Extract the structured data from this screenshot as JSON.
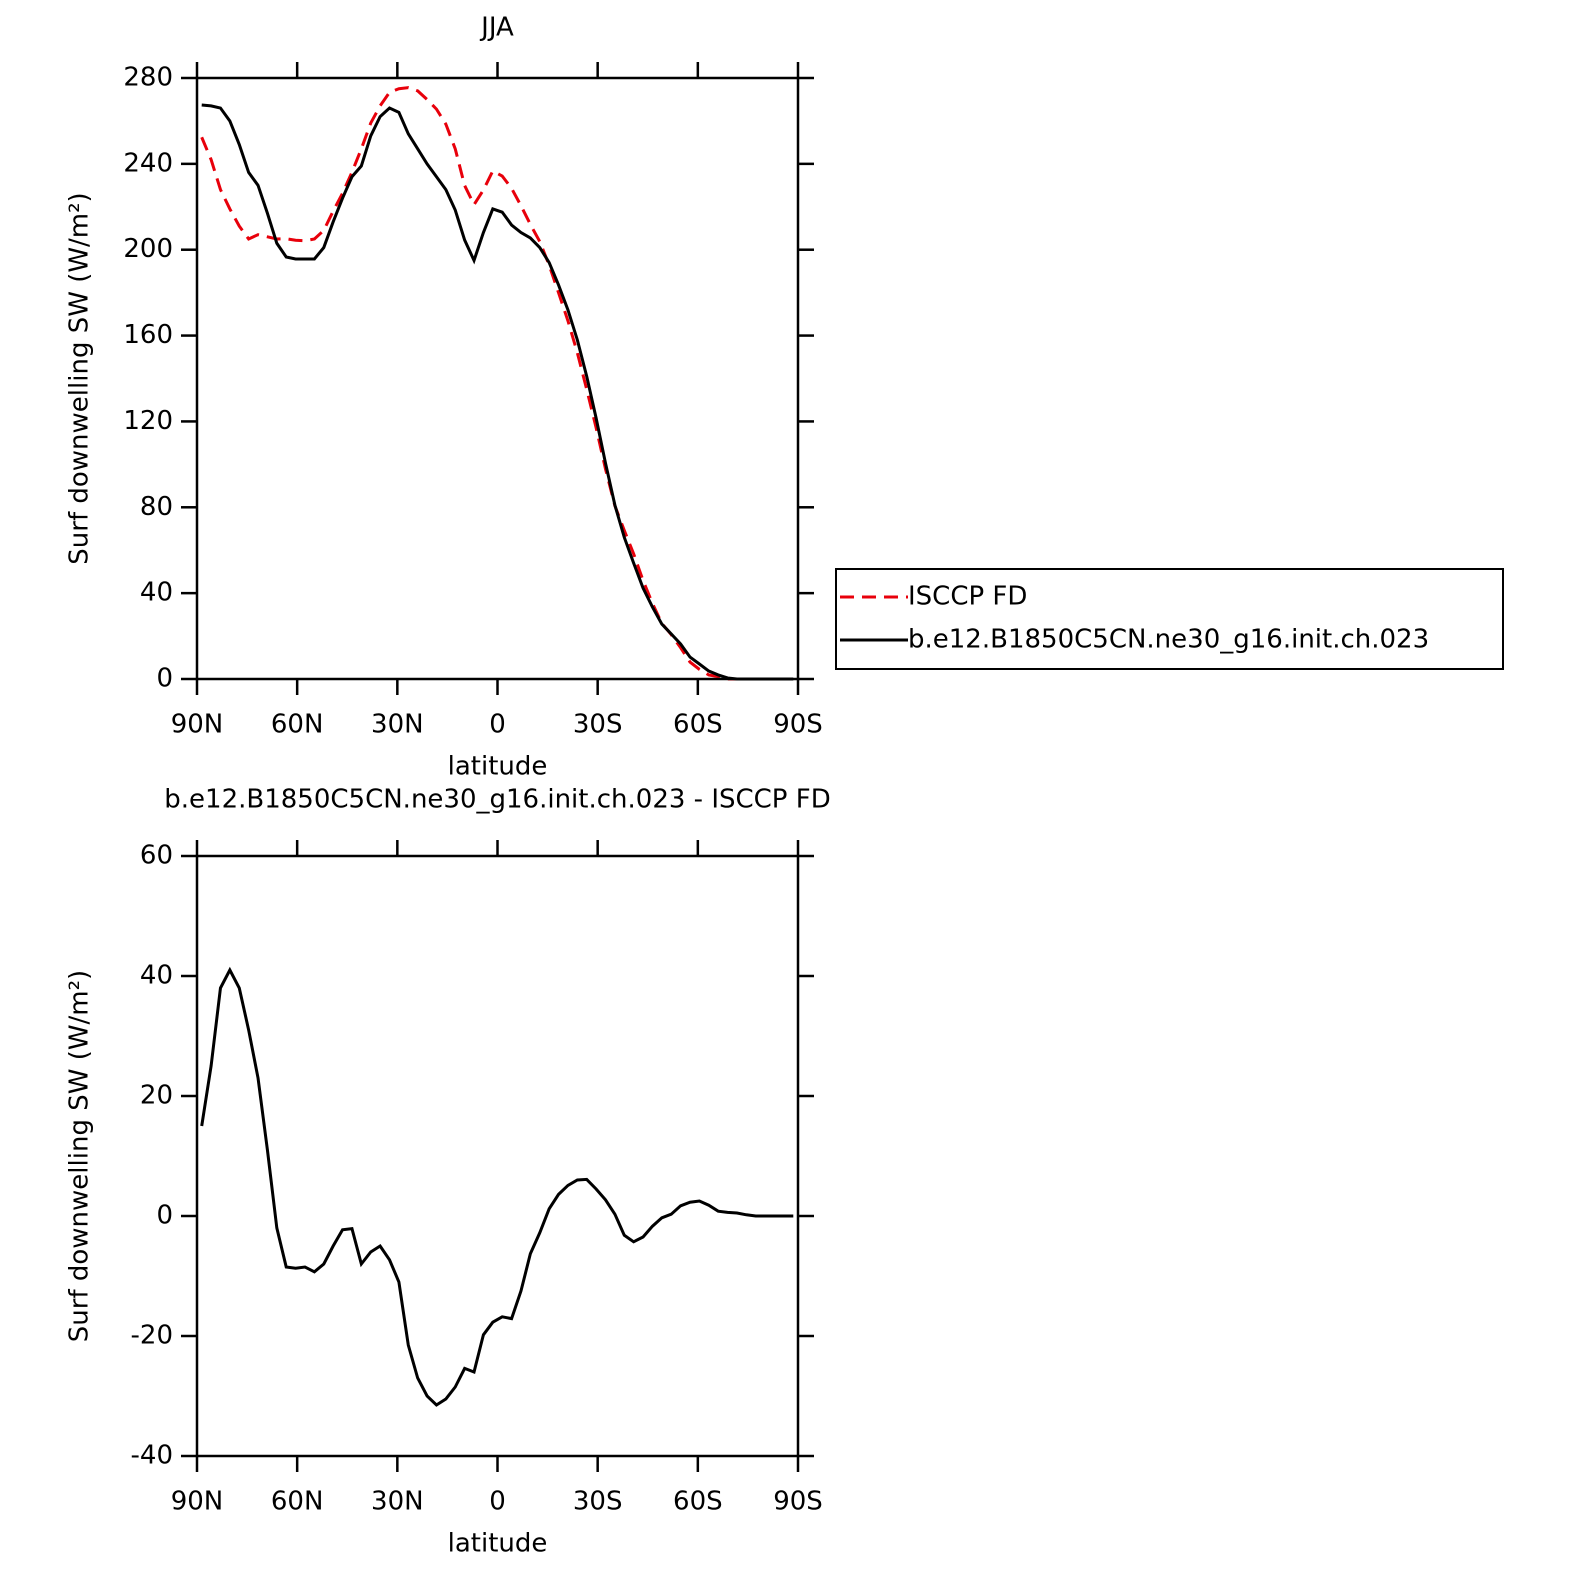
{
  "chart_data": [
    {
      "type": "line",
      "title": "JJA",
      "xlabel": "latitude",
      "ylabel": "Surf downwelling SW (W/m²)",
      "x": [
        88.59,
        85.78,
        82.97,
        80.16,
        77.34,
        74.53,
        71.72,
        68.91,
        66.09,
        63.28,
        60.47,
        57.66,
        54.84,
        52.03,
        49.22,
        46.41,
        43.59,
        40.78,
        37.97,
        35.16,
        32.34,
        29.53,
        26.72,
        23.91,
        21.09,
        18.28,
        15.47,
        12.66,
        9.84,
        7.03,
        4.22,
        1.41,
        -1.41,
        -4.22,
        -7.03,
        -9.84,
        -12.66,
        -15.47,
        -18.28,
        -21.09,
        -23.91,
        -26.72,
        -29.53,
        -32.34,
        -35.16,
        -37.97,
        -40.78,
        -43.59,
        -46.41,
        -49.22,
        -52.03,
        -54.84,
        -57.66,
        -60.47,
        -63.28,
        -66.09,
        -68.91,
        -71.72,
        -74.53,
        -77.34,
        -80.16,
        -82.97,
        -85.78,
        -88.59
      ],
      "series": [
        {
          "name": "ISCCP FD",
          "color": "#e8000b",
          "dash": "dashed",
          "values": [
            252.4,
            242,
            228,
            219,
            211,
            205,
            207,
            206,
            205,
            205.1,
            204.4,
            204.2,
            205,
            209,
            218,
            226.3,
            236.1,
            247,
            259,
            267,
            273.3,
            275,
            275.5,
            274,
            270,
            265.5,
            258.5,
            247,
            229.9,
            221,
            227.8,
            236.7,
            234.3,
            228.6,
            220.5,
            211.8,
            203.8,
            192.8,
            180,
            166.9,
            152,
            134.9,
            117.1,
            97.9,
            80.7,
            69.2,
            58.3,
            45.9,
            35.2,
            25.9,
            20.7,
            14.6,
            7.9,
            4.5,
            1.9,
            1.1,
            0,
            0,
            0,
            0,
            0,
            0,
            0,
            0
          ]
        },
        {
          "name": "b.e12.B1850C5CN.ne30_g16.init.ch.023",
          "color": "#000000",
          "dash": "solid",
          "values": [
            267.4,
            267,
            266,
            260,
            249,
            236,
            230,
            217,
            203,
            196.6,
            195.7,
            195.7,
            195.7,
            201,
            213,
            224,
            234,
            239,
            253,
            262,
            266,
            264,
            254,
            247,
            240,
            234,
            228,
            218.5,
            204.5,
            195,
            208,
            219,
            217.5,
            211.5,
            208,
            205.5,
            201,
            194,
            183.6,
            172,
            158,
            141,
            121.6,
            100.6,
            81,
            66,
            54,
            42.4,
            33.5,
            25.6,
            21,
            16.3,
            10.2,
            7,
            3.7,
            1.9,
            0.5,
            0,
            0,
            0,
            0,
            0,
            0,
            0
          ]
        }
      ],
      "xlim": [
        90,
        -90
      ],
      "xticks": [
        {
          "value": 90,
          "label": "90N"
        },
        {
          "value": 60,
          "label": "60N"
        },
        {
          "value": 30,
          "label": "30N"
        },
        0,
        {
          "value": -30,
          "label": "30S"
        },
        {
          "value": -60,
          "label": "60S"
        },
        {
          "value": -90,
          "label": "90S"
        }
      ],
      "ylim": [
        0,
        280
      ],
      "yticks": [
        0,
        40,
        80,
        120,
        160,
        200,
        240,
        280
      ],
      "legend": "right"
    },
    {
      "type": "line",
      "title": "b.e12.B1850C5CN.ne30_g16.init.ch.023 - ISCCP FD",
      "xlabel": "latitude",
      "ylabel": "Surf downwelling SW (W/m²)",
      "x": [
        88.59,
        85.78,
        82.97,
        80.16,
        77.34,
        74.53,
        71.72,
        68.91,
        66.09,
        63.28,
        60.47,
        57.66,
        54.84,
        52.03,
        49.22,
        46.41,
        43.59,
        40.78,
        37.97,
        35.16,
        32.34,
        29.53,
        26.72,
        23.91,
        21.09,
        18.28,
        15.47,
        12.66,
        9.84,
        7.03,
        4.22,
        1.41,
        -1.41,
        -4.22,
        -7.03,
        -9.84,
        -12.66,
        -15.47,
        -18.28,
        -21.09,
        -23.91,
        -26.72,
        -29.53,
        -32.34,
        -35.16,
        -37.97,
        -40.78,
        -43.59,
        -46.41,
        -49.22,
        -52.03,
        -54.84,
        -57.66,
        -60.47,
        -63.28,
        -66.09,
        -68.91,
        -71.72,
        -74.53,
        -77.34,
        -80.16,
        -82.97,
        -85.78,
        -88.59
      ],
      "series": [
        {
          "color": "#000000",
          "dash": "solid",
          "values": [
            15,
            25,
            38,
            41,
            38,
            31,
            23,
            11,
            -2,
            -8.5,
            -8.7,
            -8.5,
            -9.3,
            -8,
            -5,
            -2.3,
            -2.1,
            -8,
            -6,
            -5,
            -7.3,
            -11,
            -21.5,
            -27,
            -30,
            -31.5,
            -30.5,
            -28.5,
            -25.4,
            -26,
            -19.8,
            -17.7,
            -16.8,
            -17.1,
            -12.5,
            -6.3,
            -2.8,
            1.2,
            3.6,
            5.1,
            6.0,
            6.1,
            4.5,
            2.7,
            0.3,
            -3.2,
            -4.3,
            -3.5,
            -1.7,
            -0.3,
            0.3,
            1.7,
            2.3,
            2.5,
            1.8,
            0.8,
            0.6,
            0.5,
            0.2,
            0,
            0,
            0,
            0,
            0
          ]
        }
      ],
      "xlim": [
        90,
        -90
      ],
      "xticks": [
        {
          "value": 90,
          "label": "90N"
        },
        {
          "value": 60,
          "label": "60N"
        },
        {
          "value": 30,
          "label": "30N"
        },
        0,
        {
          "value": -30,
          "label": "30S"
        },
        {
          "value": -60,
          "label": "60S"
        },
        {
          "value": -90,
          "label": "90S"
        }
      ],
      "ylim": [
        -40,
        60
      ],
      "yticks": [
        -40,
        -20,
        0,
        20,
        40,
        60
      ]
    }
  ]
}
